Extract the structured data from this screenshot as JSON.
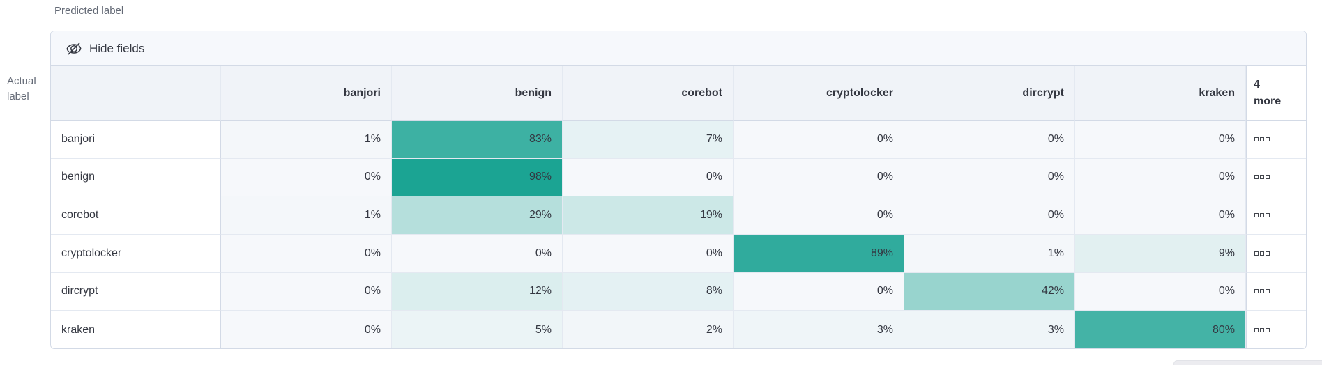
{
  "axes": {
    "predicted": "Predicted label",
    "actual_line1": "Actual",
    "actual_line2": "label"
  },
  "toolbar": {
    "hide_fields_label": "Hide fields",
    "hide_fields_icon": "eye-closed-icon"
  },
  "matrix": {
    "columns": [
      "banjori",
      "benign",
      "corebot",
      "cryptolocker",
      "dircrypt",
      "kraken"
    ],
    "more_column": {
      "line1": "4",
      "line2": "more",
      "actions_icon": "boxes-horizontal-icon"
    },
    "rows": [
      {
        "label": "banjori",
        "values": [
          1,
          83,
          7,
          0,
          0,
          0
        ]
      },
      {
        "label": "benign",
        "values": [
          0,
          98,
          0,
          0,
          0,
          0
        ]
      },
      {
        "label": "corebot",
        "values": [
          1,
          29,
          19,
          0,
          0,
          0
        ]
      },
      {
        "label": "cryptolocker",
        "values": [
          0,
          0,
          0,
          89,
          1,
          9
        ]
      },
      {
        "label": "dircrypt",
        "values": [
          0,
          12,
          8,
          0,
          42,
          0
        ]
      },
      {
        "label": "kraken",
        "values": [
          0,
          5,
          2,
          3,
          3,
          80
        ]
      }
    ],
    "value_suffix": "%"
  },
  "colors": {
    "heat_base": "#17A291",
    "zero_cell": "#F6F8FB",
    "header_bg": "#F0F3F8",
    "panel_border": "#D3DAE6",
    "inner_border": "#E4E9F1",
    "text": "#343741",
    "axis_text": "#646A76",
    "toolbar_bg": "#F6F8FC"
  }
}
